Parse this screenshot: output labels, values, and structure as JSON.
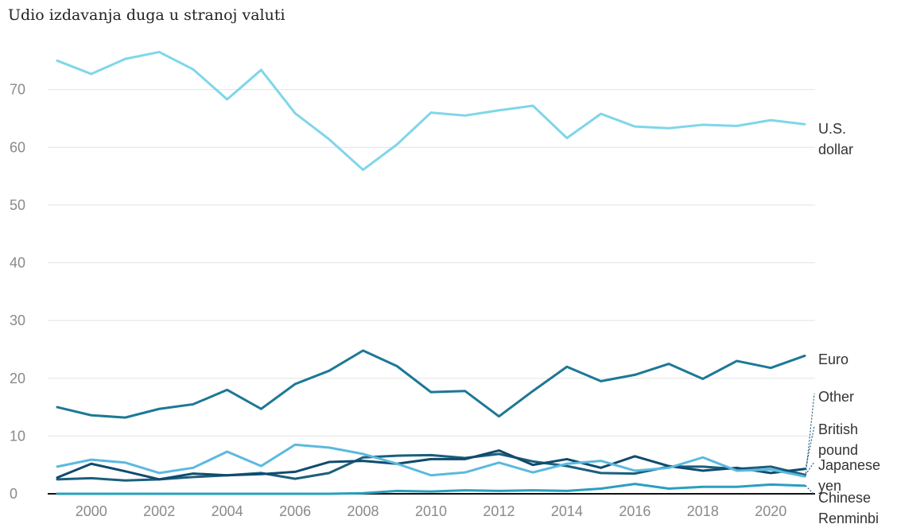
{
  "chart_data": {
    "type": "line",
    "title": "Udio izdavanja duga u stranoj valuti",
    "xlabel": "",
    "ylabel": "",
    "xlim": [
      1999,
      2021
    ],
    "ylim": [
      0,
      80
    ],
    "x_ticks": [
      "2000",
      "2002",
      "2004",
      "2006",
      "2008",
      "2010",
      "2012",
      "2014",
      "2016",
      "2018",
      "2020"
    ],
    "y_ticks": [
      "0",
      "10",
      "20",
      "30",
      "40",
      "50",
      "60",
      "70"
    ],
    "grid": true,
    "x": [
      1999,
      2000,
      2001,
      2002,
      2003,
      2004,
      2005,
      2006,
      2007,
      2008,
      2009,
      2010,
      2011,
      2012,
      2013,
      2014,
      2015,
      2016,
      2017,
      2018,
      2019,
      2020,
      2021
    ],
    "series": [
      {
        "name": "U.S. dollar",
        "label_lines": [
          "U.S.",
          "dollar"
        ],
        "color": "#7fd6ea",
        "values": [
          75.0,
          72.7,
          75.3,
          76.5,
          73.5,
          68.3,
          73.4,
          65.9,
          61.4,
          56.1,
          60.5,
          66.0,
          65.5,
          66.4,
          67.2,
          61.6,
          65.8,
          63.6,
          63.3,
          63.9,
          63.7,
          64.7,
          64.0
        ]
      },
      {
        "name": "Euro",
        "label_lines": [
          "Euro"
        ],
        "color": "#1d7896",
        "values": [
          15.0,
          13.6,
          13.2,
          14.7,
          15.5,
          18.0,
          14.7,
          19.0,
          21.3,
          24.8,
          22.1,
          17.6,
          17.8,
          13.4,
          17.8,
          22.0,
          19.5,
          20.6,
          22.5,
          19.9,
          23.0,
          21.8,
          23.9
        ]
      },
      {
        "name": "Other",
        "label_lines": [
          "Other"
        ],
        "color": "#5bb9df",
        "values": [
          4.7,
          5.9,
          5.4,
          3.6,
          4.5,
          7.3,
          4.8,
          8.5,
          8.0,
          6.9,
          5.2,
          3.2,
          3.7,
          5.4,
          3.7,
          5.2,
          5.7,
          4.0,
          4.5,
          6.3,
          4.0,
          4.2,
          3.0
        ]
      },
      {
        "name": "British pound",
        "label_lines": [
          "British",
          "pound"
        ],
        "color": "#0f4b6e",
        "values": [
          2.8,
          5.2,
          3.9,
          2.5,
          3.5,
          3.2,
          3.4,
          3.8,
          5.5,
          5.7,
          5.2,
          6.0,
          6.0,
          7.5,
          5.0,
          6.0,
          4.5,
          6.5,
          4.8,
          4.0,
          4.5,
          3.6,
          4.3
        ]
      },
      {
        "name": "Japanese yen",
        "label_lines": [
          "Japanese",
          "yen"
        ],
        "color": "#1b5f7c",
        "values": [
          2.5,
          2.7,
          2.3,
          2.5,
          2.9,
          3.2,
          3.6,
          2.6,
          3.6,
          6.3,
          6.6,
          6.7,
          6.2,
          6.9,
          5.6,
          4.8,
          3.6,
          3.5,
          4.7,
          4.7,
          4.3,
          4.7,
          3.3
        ]
      },
      {
        "name": "Chinese Renminbi",
        "label_lines": [
          "Chinese",
          "Renminbi"
        ],
        "color": "#2a9fbe",
        "values": [
          0.0,
          0.0,
          0.0,
          0.0,
          0.0,
          0.0,
          0.0,
          0.0,
          0.0,
          0.1,
          0.5,
          0.4,
          0.6,
          0.5,
          0.6,
          0.5,
          0.9,
          1.7,
          0.9,
          1.2,
          1.2,
          1.6,
          1.4
        ]
      }
    ]
  }
}
